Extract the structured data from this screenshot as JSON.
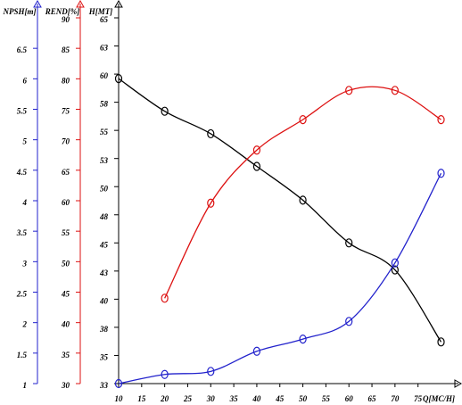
{
  "chart_data": {
    "type": "line",
    "x": [
      10,
      20,
      30,
      40,
      50,
      60,
      70,
      80
    ],
    "xlim": [
      10,
      83
    ],
    "xticks": [
      10,
      15,
      20,
      25,
      30,
      35,
      40,
      45,
      50,
      55,
      60,
      65,
      70,
      75
    ],
    "x_label": "Q[MC/H]",
    "axes": [
      {
        "label": "NPSH[m]",
        "color": "#2222cc",
        "ylim": [
          1,
          7
        ],
        "yticks": [
          1,
          1.5,
          2,
          2.5,
          3,
          3.5,
          4,
          4.5,
          5,
          5.5,
          6,
          6.5
        ]
      },
      {
        "label": "REND[%]",
        "color": "#dd1111",
        "ylim": [
          30,
          90
        ],
        "yticks": [
          30,
          35,
          40,
          45,
          50,
          55,
          60,
          65,
          70,
          75,
          80,
          85,
          90
        ]
      },
      {
        "label": "H[MT]",
        "color": "#000000",
        "ylim": [
          32.5,
          65
        ],
        "yticks": [
          {
            "value": 32.5,
            "label": "33"
          },
          35,
          {
            "value": 37.5,
            "label": "38"
          },
          40,
          {
            "value": 42.5,
            "label": "43"
          },
          45,
          {
            "value": 47.5,
            "label": "48"
          },
          50,
          {
            "value": 52.5,
            "label": "53"
          },
          55,
          {
            "value": 57.5,
            "label": "58"
          },
          60,
          {
            "value": 62.5,
            "label": "63"
          },
          65
        ]
      }
    ],
    "series": [
      {
        "axis": 2,
        "color": "#000000",
        "values": [
          59.6,
          56.7,
          54.7,
          51.8,
          48.8,
          45.0,
          42.6,
          36.2
        ]
      },
      {
        "axis": 1,
        "color": "#dd1111",
        "values": [
          null,
          44.0,
          59.6,
          68.3,
          73.3,
          78.1,
          78.1,
          73.3
        ]
      },
      {
        "axis": 0,
        "color": "#2222cc",
        "values": [
          1.0,
          1.15,
          1.2,
          1.53,
          1.73,
          2.02,
          2.98,
          4.45
        ]
      }
    ]
  }
}
